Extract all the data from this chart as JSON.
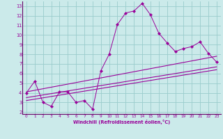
{
  "xlabel": "Windchill (Refroidissement éolien,°C)",
  "bg_color": "#cbeaea",
  "line_color": "#990099",
  "grid_color": "#99cccc",
  "axis_color": "#660066",
  "xlim": [
    -0.5,
    23.5
  ],
  "ylim": [
    1.8,
    13.5
  ],
  "xticks": [
    0,
    1,
    2,
    3,
    4,
    5,
    6,
    7,
    8,
    9,
    10,
    11,
    12,
    13,
    14,
    15,
    16,
    17,
    18,
    19,
    20,
    21,
    22,
    23
  ],
  "yticks": [
    2,
    3,
    4,
    5,
    6,
    7,
    8,
    9,
    10,
    11,
    12,
    13
  ],
  "line1_x": [
    0,
    1,
    2,
    3,
    4,
    5,
    6,
    7,
    8,
    9,
    10,
    11,
    12,
    13,
    14,
    15,
    16,
    17,
    18,
    19,
    20,
    21,
    22,
    23
  ],
  "line1_y": [
    4.0,
    5.2,
    3.0,
    2.6,
    4.1,
    4.1,
    3.0,
    3.2,
    2.3,
    6.3,
    8.0,
    11.1,
    12.3,
    12.5,
    13.3,
    12.1,
    10.2,
    9.2,
    8.3,
    8.6,
    8.8,
    9.3,
    8.1,
    7.2
  ],
  "line2_x": [
    0,
    23
  ],
  "line2_y": [
    4.1,
    7.8
  ],
  "line3_x": [
    0,
    23
  ],
  "line3_y": [
    3.5,
    6.7
  ],
  "line4_x": [
    0,
    23
  ],
  "line4_y": [
    3.2,
    6.4
  ]
}
